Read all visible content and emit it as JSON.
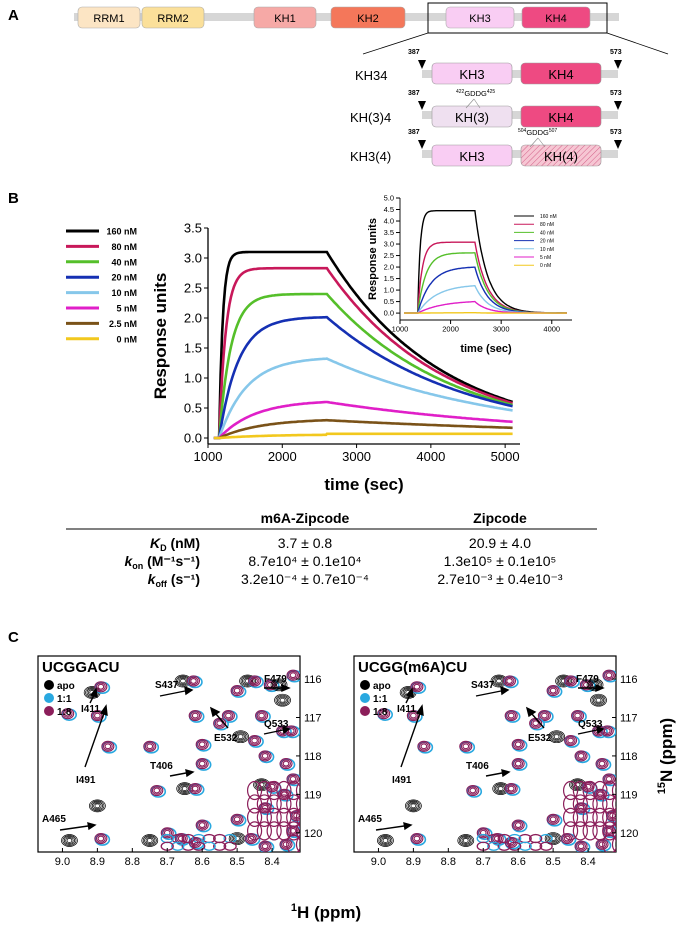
{
  "panel_a": {
    "letter": "A",
    "domains": [
      "RRM1",
      "RRM2",
      "KH1",
      "KH2",
      "KH3",
      "KH4"
    ],
    "constructs": [
      {
        "name": "KH34",
        "kh3": "KH3",
        "kh4": "KH4",
        "start": "387",
        "end": "573",
        "mutation": ""
      },
      {
        "name": "KH(3)4",
        "kh3": "KH(3)",
        "kh4": "KH4",
        "start": "387",
        "end": "573",
        "mutation_start": "422",
        "mutation_motif": "GDDG",
        "mutation_end": "425"
      },
      {
        "name": "KH3(4)",
        "kh3": "KH3",
        "kh4": "KH(4)",
        "start": "387",
        "end": "573",
        "mutation_start": "504",
        "mutation_motif": "GDDG",
        "mutation_end": "507"
      }
    ],
    "colors": {
      "rrm1": "#fce5c4",
      "rrm2": "#fbe09a",
      "kh1": "#f6a9a6",
      "kh2": "#f4775a",
      "kh3": "#f9cdf3",
      "kh4": "#ee4a82",
      "kh3_mut": "#efe0f0",
      "kh4_mut": "#f6c6d3",
      "linker": "#d6d6d6"
    }
  },
  "panel_b": {
    "letter": "B",
    "legend": [
      "160 nM",
      "80 nM",
      "40 nM",
      "20 nM",
      "10 nM",
      "5 nM",
      "2.5 nM",
      "0 nM"
    ],
    "inset_legend": [
      "160 nM",
      "80 nM",
      "40 nM",
      "20 nM",
      "10 nM",
      "5 nM",
      "0 nM"
    ],
    "series_colors": [
      "#000000",
      "#c8185a",
      "#55bf2a",
      "#1530b3",
      "#86c7ea",
      "#e01fc8",
      "#7a5218",
      "#f2c81e"
    ],
    "inset_colors": [
      "#000000",
      "#c8185a",
      "#55bf2a",
      "#1530b3",
      "#86c7ea",
      "#e01fc8",
      "#f2c81e"
    ],
    "table": {
      "col1": "m6A-Zipcode",
      "col2": "Zipcode",
      "rows": [
        {
          "label_main": "K",
          "label_sub": "D",
          "label_rest": " (nM)",
          "v1": "3.7 ± 0.8",
          "v2": "20.9 ± 4.0"
        },
        {
          "label_main": "k",
          "label_sub": "on",
          "label_rest": " (M⁻¹s⁻¹)",
          "v1": "8.7e10⁴ ± 0.1e10⁴",
          "v2": "1.3e10⁵ ± 0.1e10⁵"
        },
        {
          "label_main": "k",
          "label_sub": "off",
          "label_rest": " (s⁻¹)",
          "v1": "3.2e10⁻⁴ ± 0.7e10⁻⁴",
          "v2": "2.7e10⁻³ ± 0.4e10⁻³"
        }
      ]
    }
  },
  "panel_c": {
    "letter": "C",
    "spectra_titles": [
      "UCGGACU",
      "UCGG(m6A)CU"
    ],
    "legend": [
      "apo",
      "1:1",
      "1:8"
    ],
    "legend_colors": [
      "#000000",
      "#29a8e0",
      "#8b1e5a"
    ],
    "peak_labels": [
      "S437",
      "F479",
      "I411",
      "Q533",
      "E532",
      "I491",
      "T406",
      "A465"
    ],
    "xlabel_main": "1H (ppm)",
    "ylabel_main": "15N (ppm)"
  },
  "chart_data": [
    {
      "type": "line",
      "title": "",
      "xlabel": "time (sec)",
      "ylabel": "Response units",
      "xlim": [
        1000,
        5200
      ],
      "ylim": [
        -0.1,
        3.5
      ],
      "xticks": [
        1000,
        2000,
        3000,
        4000,
        5000
      ],
      "yticks": [
        0.0,
        0.5,
        1.0,
        1.5,
        2.0,
        2.5,
        3.0,
        3.5
      ],
      "association_start": 1150,
      "dissociation_start": 2600,
      "end": 5100,
      "series": [
        {
          "name": "160 nM",
          "plateau": 3.1,
          "end_value": 0.6
        },
        {
          "name": "80 nM",
          "plateau": 2.83,
          "end_value": 0.58
        },
        {
          "name": "40 nM",
          "plateau": 2.4,
          "end_value": 0.55
        },
        {
          "name": "20 nM",
          "plateau": 2.02,
          "end_value": 0.53
        },
        {
          "name": "10 nM",
          "plateau": 1.35,
          "end_value": 0.46
        },
        {
          "name": "5 nM",
          "plateau": 0.63,
          "end_value": 0.27
        },
        {
          "name": "2.5 nM",
          "plateau": 0.32,
          "end_value": 0.17
        },
        {
          "name": "0 nM",
          "plateau": 0.06,
          "end_value": 0.07
        }
      ]
    },
    {
      "type": "line",
      "title": "",
      "xlabel": "time (sec)",
      "ylabel": "Response units",
      "xlim": [
        1000,
        4400
      ],
      "ylim": [
        -0.3,
        5.0
      ],
      "xticks": [
        1000,
        2000,
        3000,
        4000
      ],
      "yticks": [
        0.0,
        0.5,
        1.0,
        1.5,
        2.0,
        2.5,
        3.0,
        3.5,
        4.0,
        4.5,
        5.0
      ],
      "association_start": 1350,
      "dissociation_start": 2480,
      "end": 4300,
      "series": [
        {
          "name": "160 nM",
          "plateau": 4.45,
          "end_value": 0.0
        },
        {
          "name": "80 nM",
          "plateau": 3.08,
          "end_value": 0.0
        },
        {
          "name": "40 nM",
          "plateau": 2.62,
          "end_value": 0.0
        },
        {
          "name": "20 nM",
          "plateau": 2.02,
          "end_value": 0.0
        },
        {
          "name": "10 nM",
          "plateau": 1.25,
          "end_value": 0.0
        },
        {
          "name": "5 nM",
          "plateau": 0.55,
          "end_value": 0.0
        },
        {
          "name": "0 nM",
          "plateau": 0.02,
          "end_value": 0.0
        }
      ]
    },
    {
      "type": "scatter",
      "title": "UCGGACU",
      "xlabel": "1H (ppm)",
      "ylabel": "15N (ppm)",
      "xlim": [
        9.07,
        8.32
      ],
      "ylim": [
        115.4,
        120.5
      ],
      "xticks": [
        9.0,
        8.9,
        8.8,
        8.7,
        8.6,
        8.5,
        8.4
      ],
      "yticks": [
        116,
        117,
        118,
        119,
        120
      ]
    },
    {
      "type": "scatter",
      "title": "UCGG(m6A)CU",
      "xlabel": "1H (ppm)",
      "ylabel": "15N (ppm)",
      "xlim": [
        9.07,
        8.32
      ],
      "ylim": [
        115.4,
        120.5
      ],
      "xticks": [
        9.0,
        8.9,
        8.8,
        8.7,
        8.6,
        8.5,
        8.4
      ],
      "yticks": [
        116,
        117,
        118,
        119,
        120
      ]
    }
  ]
}
